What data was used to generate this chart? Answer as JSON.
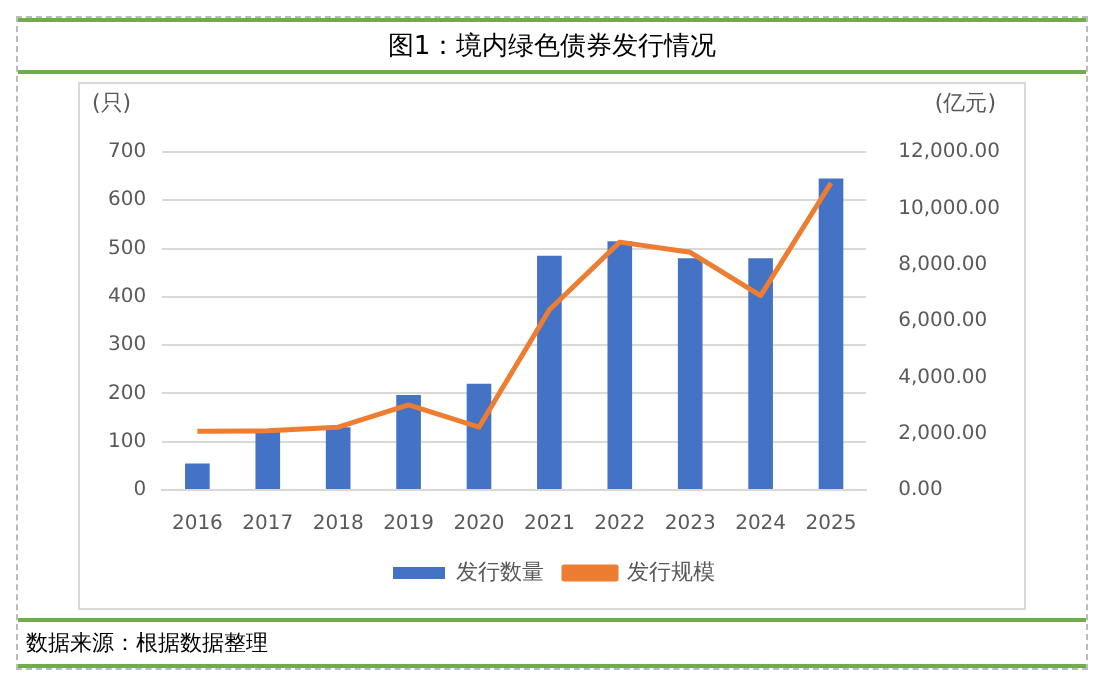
{
  "chart_data": {
    "type": "bar",
    "title": "图1：境内绿色债券发行情况",
    "ylabel": "(只)",
    "y2label": "(亿元)",
    "categories": [
      "2016",
      "2017",
      "2018",
      "2019",
      "2020",
      "2021",
      "2022",
      "2023",
      "2024",
      "2025"
    ],
    "series": [
      {
        "name": "发行数量",
        "color": "#4472c4",
        "values": [
          55,
          120,
          130,
          197,
          220,
          485,
          515,
          480,
          480,
          645
        ]
      },
      {
        "name": "发行规模",
        "type": "line",
        "axis": "y2",
        "color": "#ed7d31",
        "values": [
          2090,
          2100,
          2230,
          3020,
          2230,
          6400,
          8800,
          8440,
          6900,
          10900
        ]
      }
    ],
    "ylim": [
      0,
      700
    ],
    "yticks": [
      0,
      100,
      200,
      300,
      400,
      500,
      600,
      700
    ],
    "y2lim": [
      0,
      12000
    ],
    "y2ticks": [
      {
        "value": 0,
        "label": "0.00"
      },
      {
        "value": 2000,
        "label": "2,000.00"
      },
      {
        "value": 4000,
        "label": "4,000.00"
      },
      {
        "value": 6000,
        "label": "6,000.00"
      },
      {
        "value": 8000,
        "label": "8,000.00"
      },
      {
        "value": 10000,
        "label": "10,000.00"
      },
      {
        "value": 12000,
        "label": "12,000.00"
      }
    ],
    "grid": "y",
    "legend": "bottom",
    "marker": "none",
    "annotations": [
      "数据来源：根据数据整理"
    ]
  }
}
